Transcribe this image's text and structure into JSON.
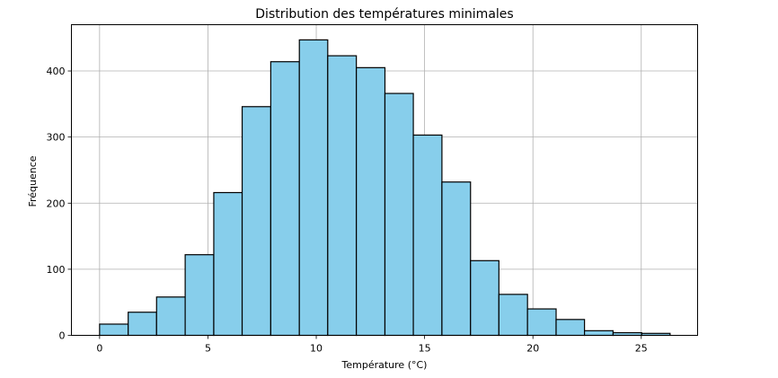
{
  "chart_data": {
    "type": "bar",
    "title": "Distribution des températures minimales",
    "xlabel": "Température (°C)",
    "ylabel": "Fréquence",
    "xlim": [
      -1.3,
      27.6
    ],
    "ylim": [
      0,
      470
    ],
    "xticks": [
      0,
      5,
      10,
      15,
      20,
      25
    ],
    "yticks": [
      0,
      100,
      200,
      300,
      400
    ],
    "grid": true,
    "bar_color": "#87CEEB",
    "edge_color": "#000000",
    "bins": [
      {
        "x0": 0.0,
        "x1": 1.32,
        "count": 17
      },
      {
        "x0": 1.32,
        "x1": 2.63,
        "count": 35
      },
      {
        "x0": 2.63,
        "x1": 3.95,
        "count": 58
      },
      {
        "x0": 3.95,
        "x1": 5.27,
        "count": 122
      },
      {
        "x0": 5.27,
        "x1": 6.58,
        "count": 216
      },
      {
        "x0": 6.58,
        "x1": 7.9,
        "count": 346
      },
      {
        "x0": 7.9,
        "x1": 9.22,
        "count": 414
      },
      {
        "x0": 9.22,
        "x1": 10.53,
        "count": 447
      },
      {
        "x0": 10.53,
        "x1": 11.85,
        "count": 423
      },
      {
        "x0": 11.85,
        "x1": 13.17,
        "count": 405
      },
      {
        "x0": 13.17,
        "x1": 14.48,
        "count": 366
      },
      {
        "x0": 14.48,
        "x1": 15.8,
        "count": 303
      },
      {
        "x0": 15.8,
        "x1": 17.12,
        "count": 232
      },
      {
        "x0": 17.12,
        "x1": 18.43,
        "count": 113
      },
      {
        "x0": 18.43,
        "x1": 19.75,
        "count": 62
      },
      {
        "x0": 19.75,
        "x1": 21.07,
        "count": 40
      },
      {
        "x0": 21.07,
        "x1": 22.38,
        "count": 24
      },
      {
        "x0": 22.38,
        "x1": 23.7,
        "count": 7
      },
      {
        "x0": 23.7,
        "x1": 25.02,
        "count": 4
      },
      {
        "x0": 25.02,
        "x1": 26.33,
        "count": 3
      }
    ]
  }
}
